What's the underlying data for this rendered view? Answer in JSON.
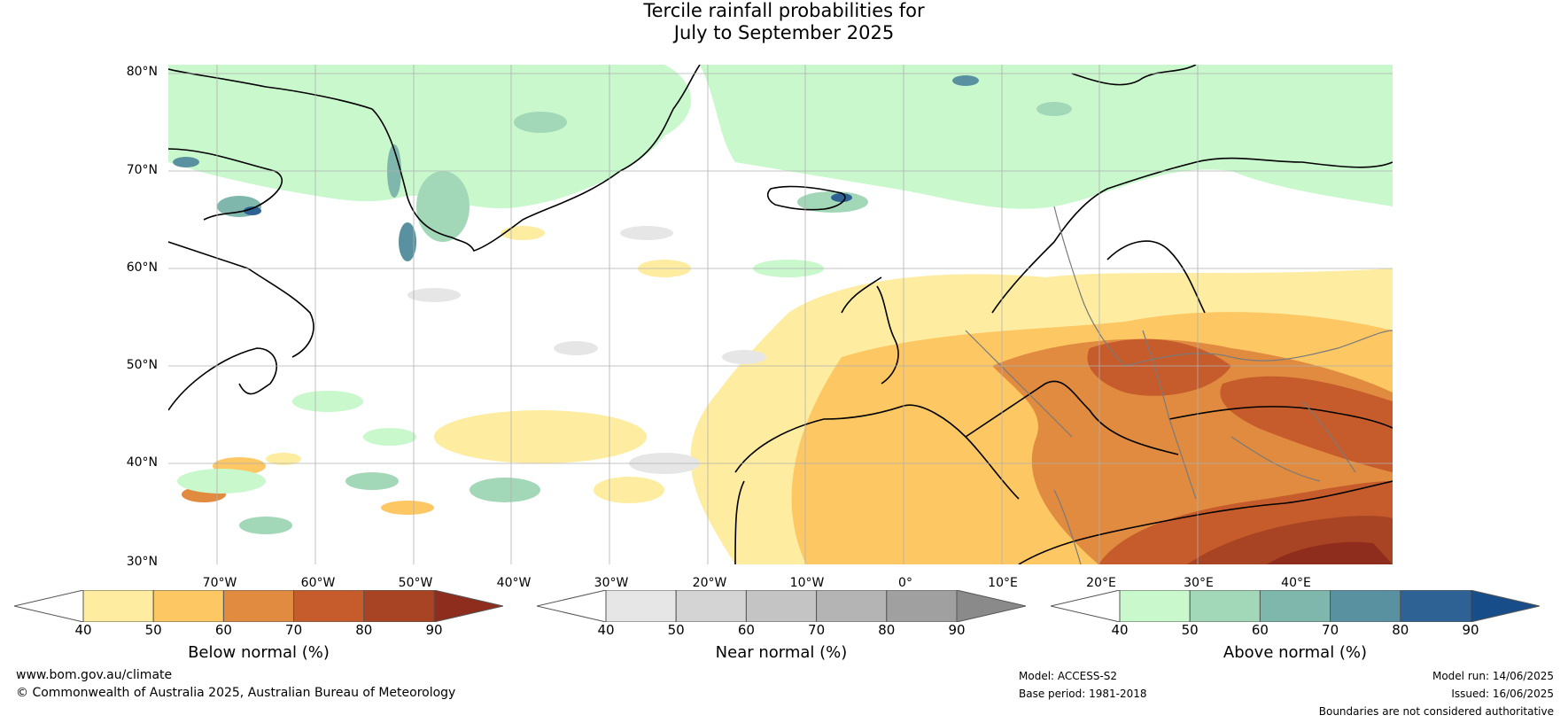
{
  "title_line1": "Tercile rainfall probabilities for",
  "title_line2": "July to September 2025",
  "map": {
    "lat_labels": [
      "80°N",
      "70°N",
      "60°N",
      "50°N",
      "40°N",
      "30°N"
    ],
    "lon_labels": [
      "70°W",
      "60°W",
      "50°W",
      "40°W",
      "30°W",
      "20°W",
      "10°W",
      "0°",
      "10°E",
      "20°E",
      "30°E",
      "40°E"
    ]
  },
  "legends": [
    {
      "id": "below",
      "title": "Below normal (%)",
      "ticks": [
        "40",
        "50",
        "60",
        "70",
        "80",
        "90"
      ],
      "colors": [
        "#ffffff",
        "#feeda0",
        "#fdc764",
        "#e08b3f",
        "#c65c2c",
        "#a84423",
        "#8e2d1d"
      ]
    },
    {
      "id": "near",
      "title": "Near normal (%)",
      "ticks": [
        "40",
        "50",
        "60",
        "70",
        "80",
        "90"
      ],
      "colors": [
        "#ffffff",
        "#e6e6e6",
        "#d4d4d4",
        "#c4c4c4",
        "#b4b4b4",
        "#a0a0a0",
        "#8a8a8a"
      ]
    },
    {
      "id": "above",
      "title": "Above normal (%)",
      "ticks": [
        "40",
        "50",
        "60",
        "70",
        "80",
        "90"
      ],
      "colors": [
        "#ffffff",
        "#c8f8cc",
        "#a2d7b8",
        "#7fb7ad",
        "#5a91a0",
        "#2f6294",
        "#174e8a"
      ]
    }
  ],
  "footer": {
    "website": "www.bom.gov.au/climate",
    "copyright": "© Commonwealth of Australia 2025, Australian Bureau of Meteorology",
    "model": "Model: ACCESS-S2",
    "base_period": "Base period: 1981-2018",
    "model_run": "Model run: 14/06/2025",
    "issued": "Issued: 16/06/2025",
    "disclaimer": "Boundaries are not considered authoritative"
  }
}
